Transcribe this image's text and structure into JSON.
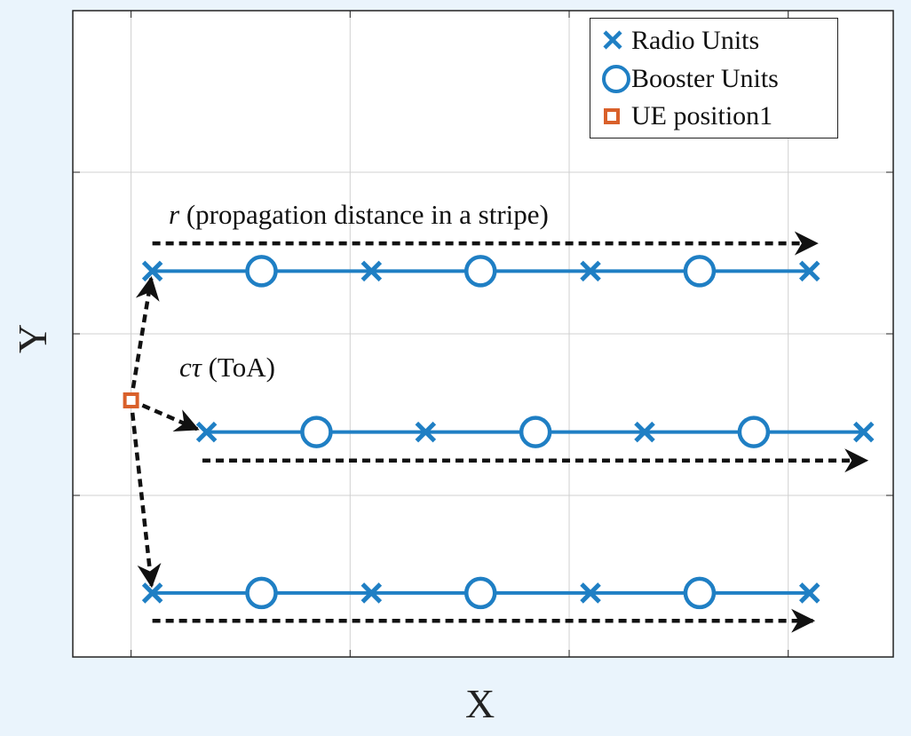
{
  "chart_data": {
    "type": "scatter",
    "title": "",
    "xlabel": "X",
    "ylabel": "Y",
    "xlim": [
      0,
      1
    ],
    "ylim": [
      0,
      1
    ],
    "grid": true,
    "legend_position": "top-right",
    "legend": [
      {
        "label": "Radio Units",
        "marker": "x",
        "color": "#1f7fc4"
      },
      {
        "label": "Booster Units",
        "marker": "circle",
        "color": "#1f7fc4"
      },
      {
        "label": "UE position1",
        "marker": "square",
        "color": "#d9602a"
      }
    ],
    "stripes": [
      {
        "radio_units": [
          [
            0.097,
            0.597
          ],
          [
            0.364,
            0.597
          ],
          [
            0.631,
            0.597
          ],
          [
            0.898,
            0.597
          ]
        ],
        "booster_units": [
          [
            0.23,
            0.597
          ],
          [
            0.497,
            0.597
          ],
          [
            0.764,
            0.597
          ]
        ]
      },
      {
        "radio_units": [
          [
            0.163,
            0.348
          ],
          [
            0.43,
            0.348
          ],
          [
            0.697,
            0.348
          ],
          [
            0.964,
            0.348
          ]
        ],
        "booster_units": [
          [
            0.297,
            0.348
          ],
          [
            0.564,
            0.348
          ],
          [
            0.83,
            0.348
          ]
        ]
      },
      {
        "radio_units": [
          [
            0.097,
            0.099
          ],
          [
            0.364,
            0.099
          ],
          [
            0.631,
            0.099
          ],
          [
            0.898,
            0.099
          ]
        ],
        "booster_units": [
          [
            0.23,
            0.099
          ],
          [
            0.497,
            0.099
          ],
          [
            0.764,
            0.099
          ]
        ]
      }
    ],
    "ue_position": [
      0.071,
      0.397
    ],
    "propagation_arrows": [
      {
        "from": [
          0.097,
          0.64
        ],
        "to": [
          0.906,
          0.64
        ]
      },
      {
        "from": [
          0.158,
          0.304
        ],
        "to": [
          0.967,
          0.304
        ]
      },
      {
        "from": [
          0.097,
          0.056
        ],
        "to": [
          0.902,
          0.056
        ]
      }
    ],
    "toa_arrows": [
      {
        "from": [
          0.071,
          0.397
        ],
        "to": [
          0.097,
          0.597
        ]
      },
      {
        "from": [
          0.071,
          0.397
        ],
        "to": [
          0.16,
          0.348
        ]
      },
      {
        "from": [
          0.071,
          0.397
        ],
        "to": [
          0.097,
          0.099
        ]
      }
    ],
    "annotations": [
      {
        "var": "r",
        "text": " (propagation distance in a stripe)"
      },
      {
        "var": "cτ",
        "text": " (ToA)"
      }
    ]
  },
  "colors": {
    "radio": "#1f7fc4",
    "booster": "#1f7fc4",
    "ue": "#d9602a",
    "arrow": "#111111",
    "grid": "#d0d0d0",
    "background": "#eaf4fc"
  }
}
